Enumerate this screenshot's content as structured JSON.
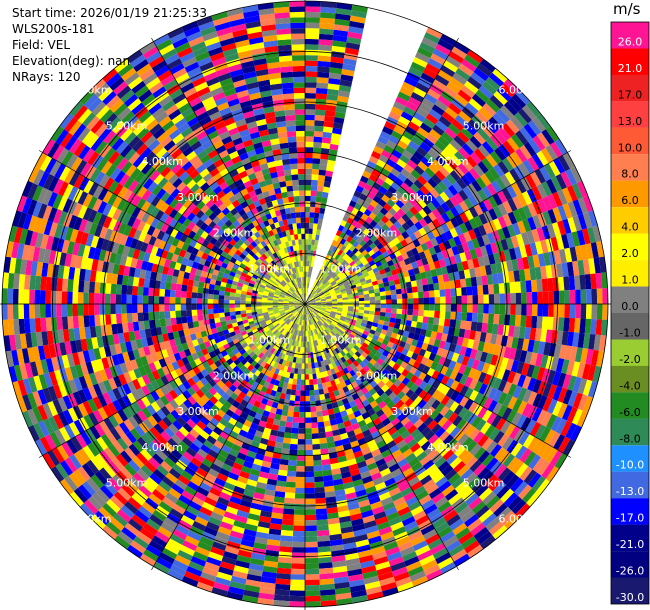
{
  "header": {
    "start_time": "Start time: 2026/01/19 21:25:33",
    "instrument": "WLS200s-181",
    "field": "Field: VEL",
    "elevation": "Elevation(deg): nan",
    "nrays": "NRays: 120"
  },
  "colorbar": {
    "unit": "m/s",
    "bins": [
      {
        "value": "26.0",
        "color": "#ff1493"
      },
      {
        "value": "21.0",
        "color": "#ff0000"
      },
      {
        "value": "17.0",
        "color": "#ee2222"
      },
      {
        "value": "13.0",
        "color": "#ff4040"
      },
      {
        "value": "10.0",
        "color": "#ff5a36"
      },
      {
        "value": "8.0",
        "color": "#ff7f50"
      },
      {
        "value": "6.0",
        "color": "#ff9900"
      },
      {
        "value": "4.0",
        "color": "#ffcc00"
      },
      {
        "value": "2.0",
        "color": "#ffff00"
      },
      {
        "value": "1.0",
        "color": "#ffee00"
      },
      {
        "value": "0.0",
        "color": "#808080"
      },
      {
        "value": "-1.0",
        "color": "#666666"
      },
      {
        "value": "-2.0",
        "color": "#9acd32"
      },
      {
        "value": "-4.0",
        "color": "#6b8e23"
      },
      {
        "value": "-6.0",
        "color": "#228b22"
      },
      {
        "value": "-8.0",
        "color": "#2e8b57"
      },
      {
        "value": "-10.0",
        "color": "#1e90ff"
      },
      {
        "value": "-13.0",
        "color": "#4169e1"
      },
      {
        "value": "-17.0",
        "color": "#0000ff"
      },
      {
        "value": "-21.0",
        "color": "#00008b"
      },
      {
        "value": "-26.0",
        "color": "#000080"
      },
      {
        "value": "-30.0",
        "color": "#191970"
      }
    ]
  },
  "chart_data": {
    "type": "heatmap",
    "projection": "polar-ppi",
    "field": "VEL",
    "units": "m/s",
    "nrays": 120,
    "range_unit": "km",
    "range_rings_km": [
      1.0,
      2.0,
      3.0,
      4.0,
      5.0,
      6.0
    ],
    "range_ring_labels": [
      "1.00km",
      "2.00km",
      "3.00km",
      "4.00km",
      "5.00km",
      "6.00km"
    ],
    "max_range_km": 6.0,
    "missing_sector_deg": [
      12,
      24
    ],
    "near_field_range_km": 1.0,
    "near_field_colors": [
      "#ffff00",
      "#9acd32",
      "#808080"
    ],
    "far_field_colors": [
      "#ff1493",
      "#ff0000",
      "#0000ff",
      "#00008b",
      "#ffff00",
      "#808080",
      "#ff7f50",
      "#4169e1",
      "#2e8b57",
      "#ff9900",
      "#191970",
      "#228b22"
    ]
  }
}
